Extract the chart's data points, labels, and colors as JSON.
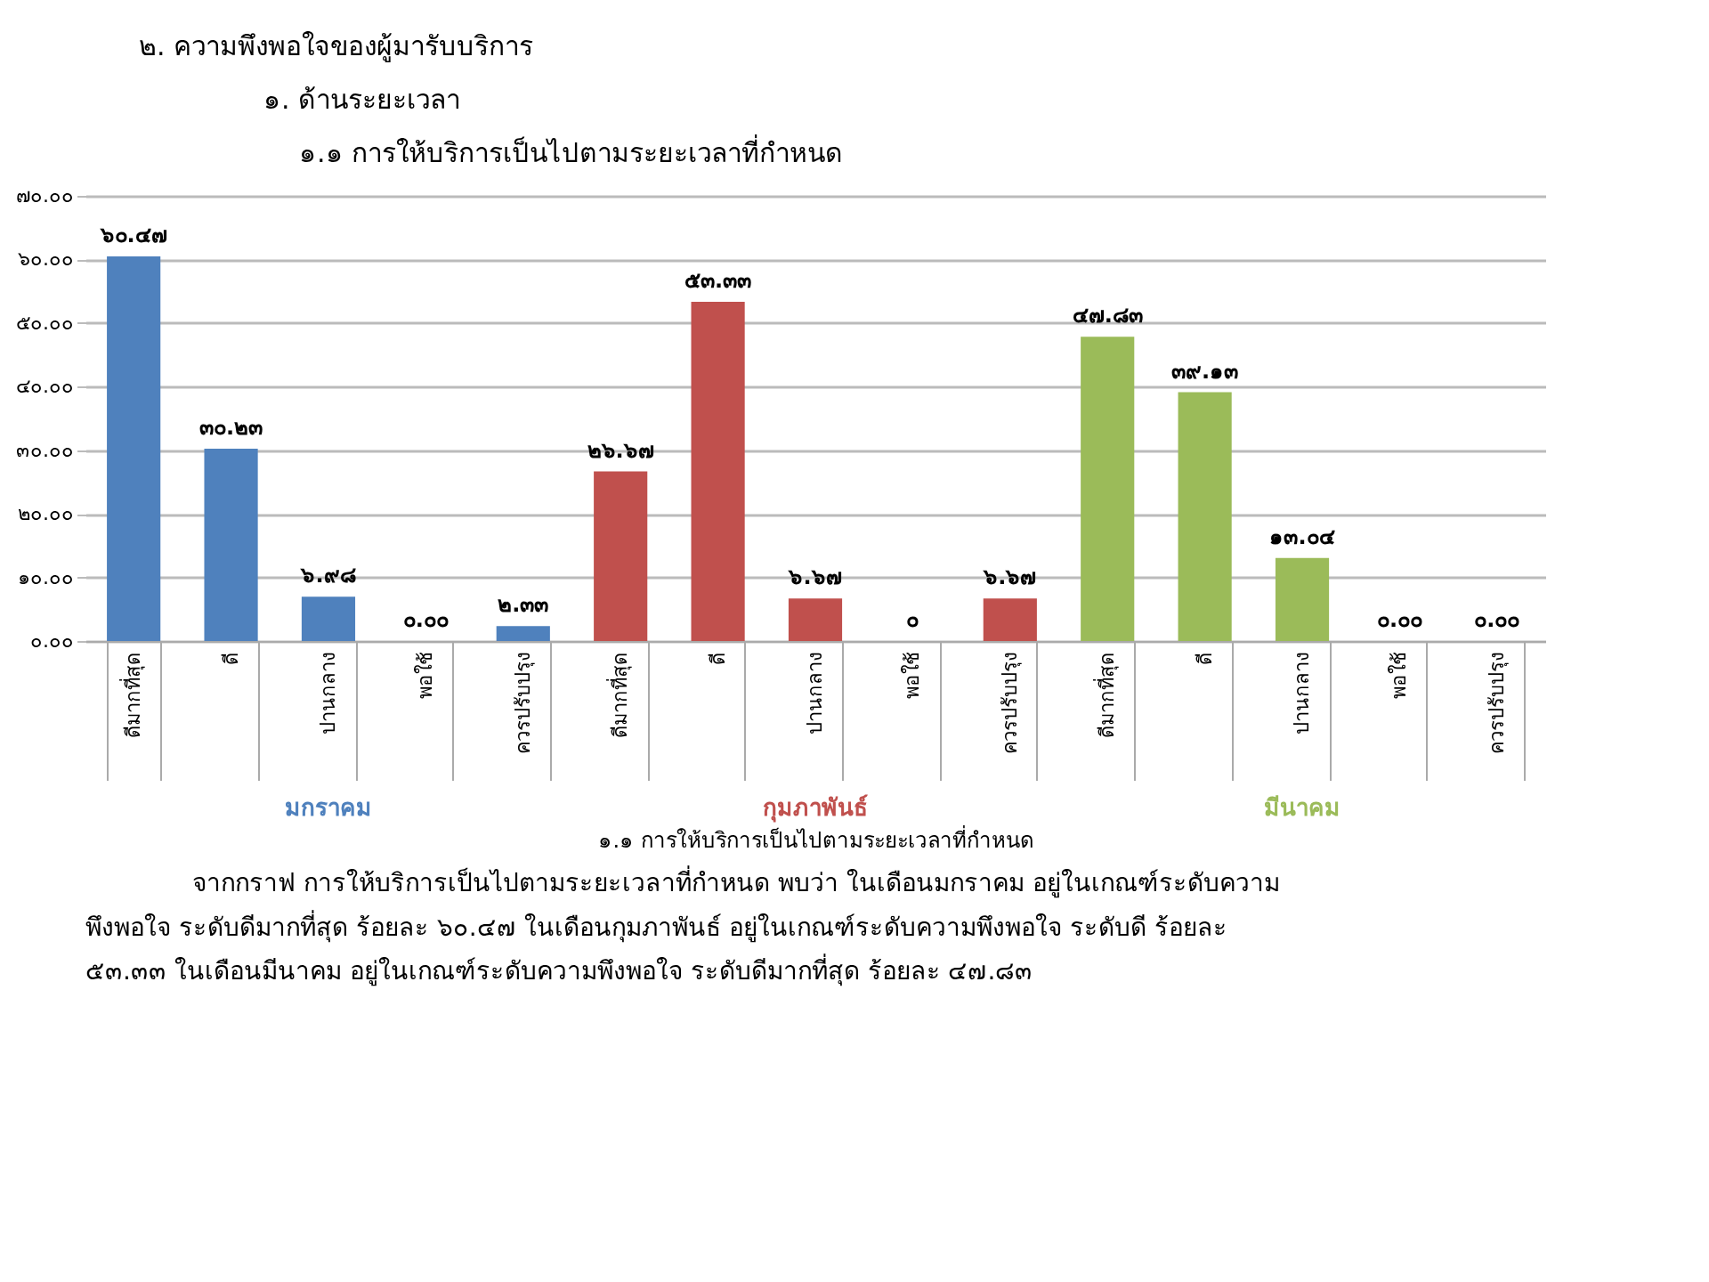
{
  "chart_data": {
    "type": "bar",
    "title": "๒. ความพึงพอใจของผู้มารับบริการ",
    "subtitle": "๑. ด้านระยะเวลา",
    "annotations": [
      "๑.๑ การให้บริการเป็นไปตามระยะเวลาที่กำหนด",
      "จากกราฟ การให้บริการเป็นไปตามระยะเวลาที่กำหนด พบว่า ในเดือนมกราคม อยู่ในเกณฑ์ระดับความ",
      "พึงพอใจ ระดับดีมากที่สุด ร้อยละ ๖๐.๔๗  ในเดือนกุมภาพันธ์ อยู่ในเกณฑ์ระดับความพึงพอใจ ระดับดี ร้อยละ",
      "๕๓.๓๓  ในเดือนมีนาคม อยู่ในเกณฑ์ระดับความพึงพอใจ  ระดับดีมากที่สุด ร้อยละ ๔๗.๘๓"
    ],
    "xlabel": "๑.๑ การให้บริการเป็นไปตามระยะเวลาที่กำหนด",
    "categories": [
      "ดีมากที่สุด",
      "ดี",
      "ปานกลาง",
      "พอใช้",
      "ควรปรับปรุง",
      "ดีมากที่สุด",
      "ดี",
      "ปานกลาง",
      "พอใช้",
      "ควรปรับปรุง",
      "ดีมากที่สุด",
      "ดี",
      "ปานกลาง",
      "พอใช้",
      "ควรปรับปรุง"
    ],
    "series": [
      {
        "name": "มกราคม",
        "color": "#4f81bd",
        "values": [
          60.47,
          30.23,
          6.98,
          0.0,
          2.33,
          null,
          null,
          null,
          null,
          null,
          null,
          null,
          null,
          null,
          null
        ],
        "value_labels": [
          "๖๐.๔๗",
          "๓๐.๒๓",
          "๖.๙๘",
          "๐.๐๐",
          "๒.๓๓",
          null,
          null,
          null,
          null,
          null,
          null,
          null,
          null,
          null,
          null
        ]
      },
      {
        "name": "กุมภาพันธ์",
        "color": "#c0504d",
        "values": [
          null,
          null,
          null,
          null,
          null,
          26.67,
          53.33,
          6.67,
          0,
          6.67,
          null,
          null,
          null,
          null,
          null
        ],
        "value_labels": [
          null,
          null,
          null,
          null,
          null,
          "๒๖.๖๗",
          "๕๓.๓๓",
          "๖.๖๗",
          "๐",
          "๖.๖๗",
          null,
          null,
          null,
          null,
          null
        ]
      },
      {
        "name": "มีนาคม",
        "color": "#9bbb59",
        "values": [
          null,
          null,
          null,
          null,
          null,
          null,
          null,
          null,
          null,
          null,
          47.83,
          39.13,
          13.04,
          0.0,
          0.0
        ],
        "value_labels": [
          null,
          null,
          null,
          null,
          null,
          null,
          null,
          null,
          null,
          null,
          "๔๗.๘๓",
          "๓๙.๑๓",
          "๑๓.๐๔",
          "๐.๐๐",
          "๐.๐๐"
        ]
      }
    ],
    "ylim": [
      0,
      70
    ],
    "yticks": [
      {
        "value": 0,
        "label": "๐.๐๐"
      },
      {
        "value": 10,
        "label": "๑๐.๐๐"
      },
      {
        "value": 20,
        "label": "๒๐.๐๐"
      },
      {
        "value": 30,
        "label": "๓๐.๐๐"
      },
      {
        "value": 40,
        "label": "๔๐.๐๐"
      },
      {
        "value": 50,
        "label": "๕๐.๐๐"
      },
      {
        "value": 60,
        "label": "๖๐.๐๐"
      },
      {
        "value": 70,
        "label": "๗๐.๐๐"
      }
    ],
    "grid": "y",
    "legend": false
  }
}
